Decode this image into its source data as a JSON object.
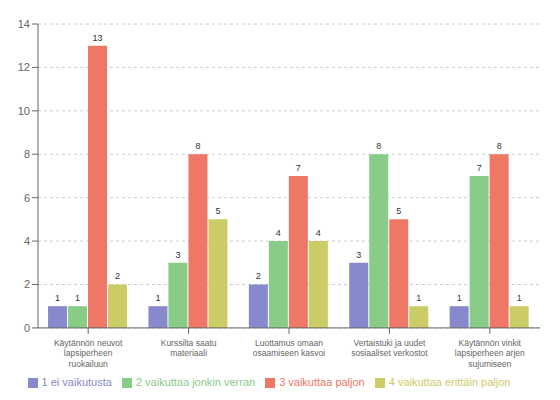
{
  "chart_data": {
    "type": "bar",
    "categories": [
      "Käytännön neuvot\nlapsiperheen\nruokailuun",
      "Kurssilta saatu\nmateriaali",
      "Luottamus omaan\nosaamiseen kasvoi",
      "Vertaistuki ja uudet\nsosiaaliset verkostot",
      "Käytännön vinkit\nlapsiperheen arjen\nsujumiseen"
    ],
    "series": [
      {
        "name": "1 ei vaikutusta",
        "color": "#8888cc",
        "values": [
          1,
          1,
          2,
          3,
          1
        ]
      },
      {
        "name": "2 vaikuttaa jonkin verran",
        "color": "#88cc88",
        "values": [
          1,
          3,
          4,
          8,
          7
        ]
      },
      {
        "name": "3 vaikuttaa paljon",
        "color": "#ee7766",
        "values": [
          13,
          8,
          7,
          5,
          8
        ]
      },
      {
        "name": "4 vaikuttaa erittäin paljon",
        "color": "#cccc66",
        "values": [
          2,
          5,
          4,
          1,
          1
        ]
      }
    ],
    "ylim": [
      0,
      14
    ],
    "yticks": [
      0,
      2,
      4,
      6,
      8,
      10,
      12,
      14
    ],
    "grid": true,
    "data_labels": true,
    "legend": "bottom"
  }
}
